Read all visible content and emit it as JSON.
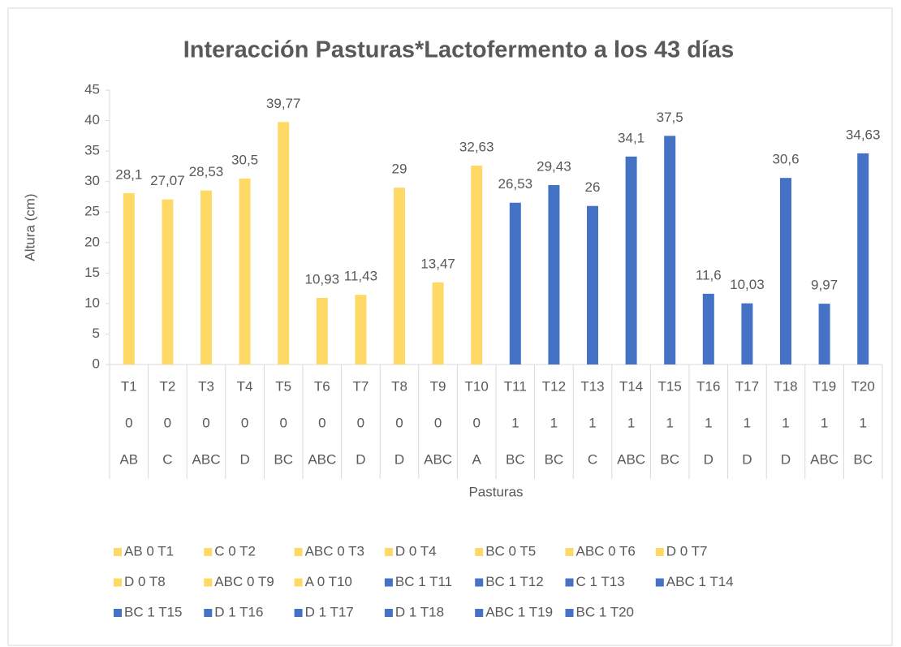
{
  "chart_data": {
    "type": "bar",
    "title": "Interacción Pasturas*Lactofermento a los 43 días",
    "y_label": "Altura (cm)",
    "x_label": "Pasturas",
    "categories": [
      "T1",
      "T2",
      "T3",
      "T4",
      "T5",
      "T6",
      "T7",
      "T8",
      "T9",
      "T10",
      "T11",
      "T12",
      "T13",
      "T14",
      "T15",
      "T16",
      "T17",
      "T18",
      "T19",
      "T20"
    ],
    "category_level2": [
      "0",
      "0",
      "0",
      "0",
      "0",
      "0",
      "0",
      "0",
      "0",
      "0",
      "1",
      "1",
      "1",
      "1",
      "1",
      "1",
      "1",
      "1",
      "1",
      "1"
    ],
    "category_level3": [
      "AB",
      "C",
      "ABC",
      "D",
      "BC",
      "ABC",
      "D",
      "D",
      "ABC",
      "A",
      "BC",
      "BC",
      "C",
      "ABC",
      "BC",
      "D",
      "D",
      "D",
      "ABC",
      "BC"
    ],
    "values": [
      28.1,
      27.07,
      28.53,
      30.5,
      39.77,
      10.93,
      11.43,
      29,
      13.47,
      32.63,
      26.53,
      29.43,
      26,
      34.1,
      37.5,
      11.6,
      10.03,
      30.6,
      9.97,
      34.63
    ],
    "value_labels": [
      "28,1",
      "27,07",
      "28,53",
      "30,5",
      "39,77",
      "10,93",
      "11,43",
      "29",
      "13,47",
      "32,63",
      "26,53",
      "29,43",
      "26",
      "34,1",
      "37,5",
      "11,6",
      "10,03",
      "30,6",
      "9,97",
      "34,63"
    ],
    "colors": [
      "#ffd966",
      "#ffd966",
      "#ffd966",
      "#ffd966",
      "#ffd966",
      "#ffd966",
      "#ffd966",
      "#ffd966",
      "#ffd966",
      "#ffd966",
      "#4472c4",
      "#4472c4",
      "#4472c4",
      "#4472c4",
      "#4472c4",
      "#4472c4",
      "#4472c4",
      "#4472c4",
      "#4472c4",
      "#4472c4"
    ],
    "legend": [
      "AB 0 T1",
      "C 0 T2",
      "ABC 0 T3",
      "D 0 T4",
      "BC 0 T5",
      "ABC 0 T6",
      "D 0 T7",
      "D 0 T8",
      "ABC 0 T9",
      "A 0 T10",
      "BC 1 T11",
      "BC 1 T12",
      "C 1 T13",
      "ABC 1 T14",
      "BC 1 T15",
      "D 1 T16",
      "D 1 T17",
      "D 1 T18",
      "ABC 1 T19",
      "BC 1 T20"
    ],
    "ylim": [
      0,
      45
    ],
    "yticks": [
      0,
      5,
      10,
      15,
      20,
      25,
      30,
      35,
      40,
      45
    ],
    "grid": false
  }
}
